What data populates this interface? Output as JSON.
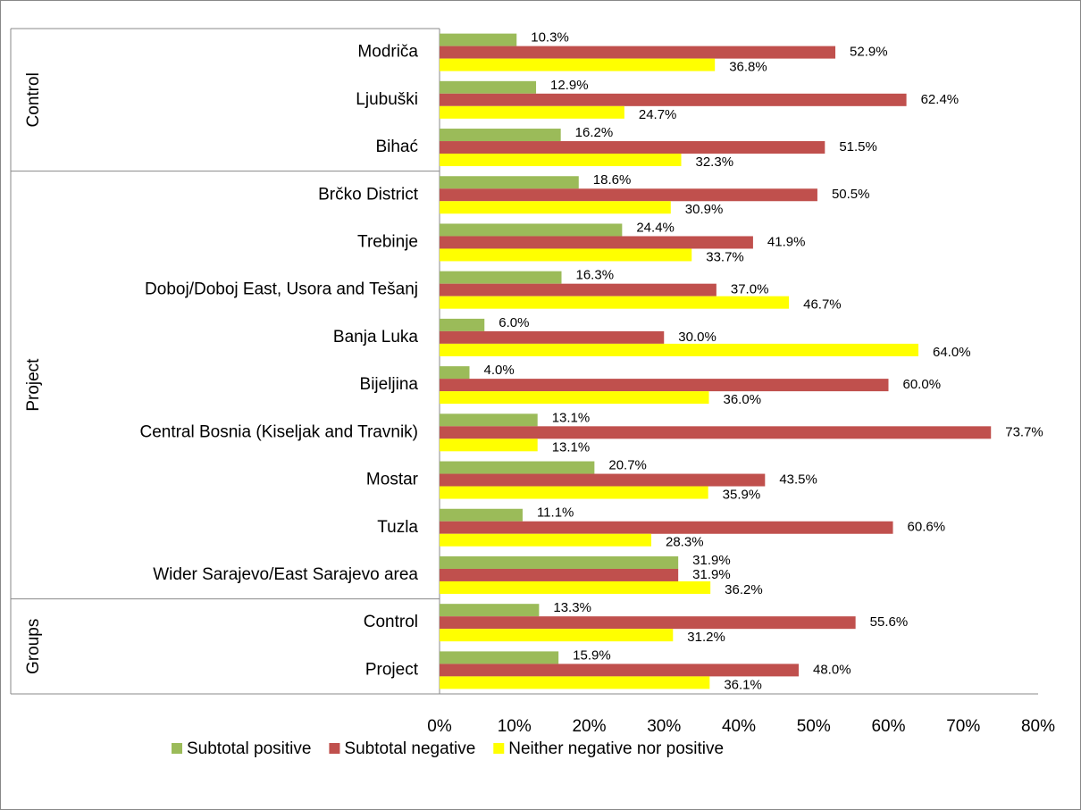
{
  "chart_data": {
    "type": "bar",
    "orientation": "horizontal",
    "categories": [
      "Modriča",
      "Ljubuški",
      "Bihać",
      "Brčko District",
      "Trebinje",
      "Doboj/Doboj East, Usora and Tešanj",
      "Banja Luka",
      "Bijeljina",
      "Central Bosnia (Kiseljak and Travnik)",
      "Mostar",
      "Tuzla",
      "Wider Sarajevo/East Sarajevo area",
      "Control",
      "Project"
    ],
    "category_groups": [
      "Control",
      "Control",
      "Control",
      "Project",
      "Project",
      "Project",
      "Project",
      "Project",
      "Project",
      "Project",
      "Project",
      "Project",
      "Groups",
      "Groups"
    ],
    "series": [
      {
        "name": "Subtotal positive",
        "color": "#9bbb59",
        "values": [
          10.3,
          12.9,
          16.2,
          18.6,
          24.4,
          16.3,
          6,
          4,
          13.1,
          20.7,
          11.1,
          31.9,
          13.3,
          15.9
        ],
        "value_labels": [
          "10.3%",
          "12.9%",
          "16.2%",
          "18.6%",
          "24.4%",
          "16.3%",
          "6.0%",
          "4.0%",
          "13.1%",
          "20.7%",
          "11.1%",
          "31.9%",
          "13.3%",
          "15.9%"
        ]
      },
      {
        "name": "Subtotal negative",
        "color": "#c0504d",
        "values": [
          52.9,
          62.4,
          51.5,
          50.5,
          41.9,
          37,
          30,
          60,
          73.7,
          43.5,
          60.6,
          31.9,
          55.6,
          48
        ],
        "value_labels": [
          "52.9%",
          "62.4%",
          "51.5%",
          "50.5%",
          "41.9%",
          "37.0%",
          "30.0%",
          "60.0%",
          "73.7%",
          "43.5%",
          "60.6%",
          "31.9%",
          "55.6%",
          "48.0%"
        ]
      },
      {
        "name": "Neither negative nor positive",
        "color": "#ffff00",
        "values": [
          36.8,
          24.7,
          32.3,
          30.9,
          33.7,
          46.7,
          64,
          36,
          13.1,
          35.9,
          28.3,
          36.2,
          31.2,
          36.1
        ],
        "value_labels": [
          "36.8%",
          "24.7%",
          "32.3%",
          "30.9%",
          "33.7%",
          "46.7%",
          "64.0%",
          "36.0%",
          "13.1%",
          "35.9%",
          "28.3%",
          "36.2%",
          "31.2%",
          "36.1%"
        ]
      }
    ],
    "xlim": [
      0,
      80
    ],
    "xticks": [
      {
        "value": 0,
        "label": "0%"
      },
      {
        "value": 10,
        "label": "10%"
      },
      {
        "value": 20,
        "label": "20%"
      },
      {
        "value": 30,
        "label": "30%"
      },
      {
        "value": 40,
        "label": "40%"
      },
      {
        "value": 50,
        "label": "50%"
      },
      {
        "value": 60,
        "label": "60%"
      },
      {
        "value": 70,
        "label": "70%"
      },
      {
        "value": 80,
        "label": "80%"
      }
    ],
    "grid": false,
    "legend": "bottom"
  }
}
